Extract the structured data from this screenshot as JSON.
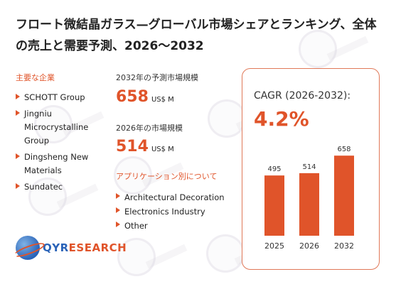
{
  "title": "フロート微結晶ガラス—グローバル市場シェアとランキング、全体の売上と需要予測、2026〜2032",
  "companies": {
    "heading": "主要な企業",
    "items": [
      "SCHOTT Group",
      "Jingniu Microcrystalline Group",
      "Dingsheng New Materials",
      "Sundatec"
    ]
  },
  "metrics": {
    "forecast_label": "2032年の予測市場規模",
    "forecast_value": "658",
    "forecast_unit": "US$ M",
    "current_label": "2026年の市場規模",
    "current_value": "514",
    "current_unit": "US$ M"
  },
  "applications": {
    "heading": "アプリケーション別について",
    "items": [
      "Architectural Decoration",
      "Electronics Industry",
      "Other"
    ]
  },
  "cagr": {
    "label": "CAGR (2026-2032):",
    "value": "4.2%"
  },
  "chart_data": {
    "type": "bar",
    "categories": [
      "2025",
      "2026",
      "2032"
    ],
    "values": [
      495,
      514,
      658
    ],
    "title": "",
    "xlabel": "",
    "ylabel": "",
    "ylim": [
      0,
      700
    ],
    "bar_color": "#e0542a",
    "grid": false
  },
  "logo": {
    "brand_a": "QYR",
    "brand_b": "ESEARCH"
  },
  "colors": {
    "accent": "#e0542a",
    "card_border": "#e07858",
    "logo_blue": "#2a63b8"
  }
}
